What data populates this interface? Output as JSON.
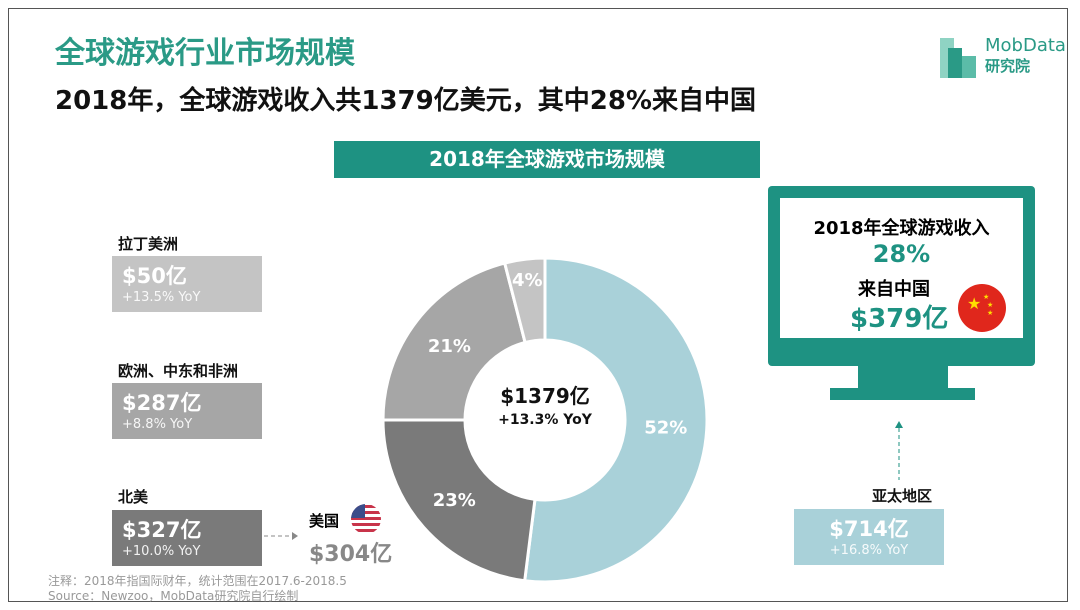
{
  "header": {
    "title": "全球游戏行业市场规模",
    "subtitle": "2018年，全球游戏收入共1379亿美元，其中28%来自中国",
    "logo_text": "MobData",
    "logo_sub": "研究院"
  },
  "banner": "2018年全球游戏市场规模",
  "regions": [
    {
      "name": "拉丁美洲",
      "value": "$50亿",
      "yoy": "+13.5% YoY",
      "color": "#c4c4c4"
    },
    {
      "name": "欧洲、中东和非洲",
      "value": "$287亿",
      "yoy": "+8.8% YoY",
      "color": "#a6a6a6"
    },
    {
      "name": "北美",
      "value": "$327亿",
      "yoy": "+10.0% YoY",
      "color": "#7a7a7a"
    },
    {
      "name": "亚太地区",
      "value": "$714亿",
      "yoy": "+16.8% YoY",
      "color": "#a9d1d9"
    }
  ],
  "usa": {
    "label": "美国",
    "value": "$304亿"
  },
  "china": {
    "line1": "2018年全球游戏收入",
    "pct": "28%",
    "line2": "来自中国",
    "value": "$379亿"
  },
  "chart_data": {
    "type": "pie",
    "donut": true,
    "center_label": "$1379亿",
    "center_sub": "+13.3% YoY",
    "categories": [
      "亚太地区",
      "北美",
      "欧洲、中东和非洲",
      "拉丁美洲"
    ],
    "values": [
      52,
      23,
      21,
      4
    ],
    "labels": [
      "52%",
      "23%",
      "21%",
      "4%"
    ],
    "colors": [
      "#a9d1d9",
      "#7a7a7a",
      "#a6a6a6",
      "#c4c4c4"
    ]
  },
  "notes": {
    "line1": "注释：2018年指国际财年，统计范围在2017.6-2018.5",
    "line2": "Source：Newzoo，MobData研究院自行绘制"
  },
  "accent": "#1e9282"
}
